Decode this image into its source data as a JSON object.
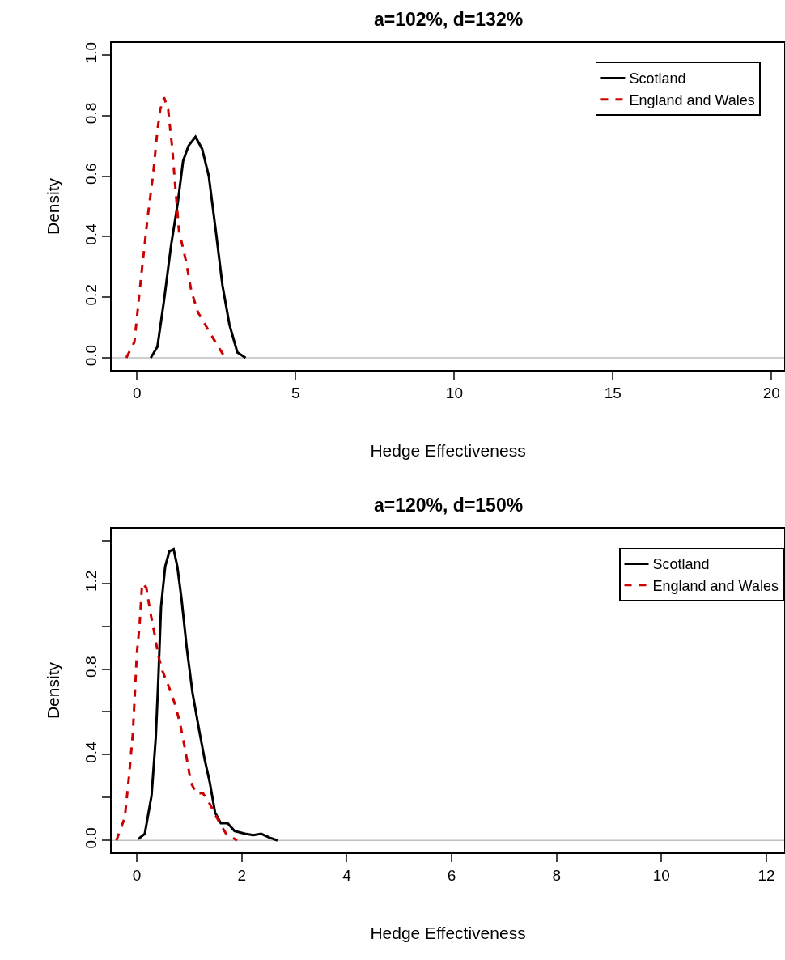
{
  "chart_data": [
    {
      "type": "line",
      "title": "a=102%, d=132%",
      "xlabel": "Hedge Effectiveness",
      "ylabel": "Density",
      "xlim": [
        -0.8,
        20.4
      ],
      "xticks": [
        0,
        5,
        10,
        15,
        20
      ],
      "ylim": [
        -0.04,
        1.04
      ],
      "yticks": [
        {
          "value": 0,
          "label": "0.0"
        },
        0.2,
        0.4,
        0.6,
        0.8,
        {
          "value": 1,
          "label": "1.0"
        }
      ],
      "legend": "top right",
      "grid": false,
      "marker": "none",
      "ref_lines": [
        {
          "axis": "y",
          "value": 0,
          "color": "#bebebe"
        }
      ],
      "series": [
        {
          "name": "Scotland",
          "color": "#000000",
          "line_style": "solid",
          "x": [
            0.43,
            0.64,
            0.85,
            1.07,
            1.28,
            1.45,
            1.62,
            1.84,
            2.05,
            2.26,
            2.48,
            2.69,
            2.91,
            3.16,
            3.42
          ],
          "values": [
            0,
            0.036,
            0.19,
            0.37,
            0.51,
            0.65,
            0.7,
            0.73,
            0.69,
            0.6,
            0.42,
            0.24,
            0.11,
            0.018,
            0
          ]
        },
        {
          "name": "England and Wales",
          "color": "#cc0000",
          "line_style": "dashed",
          "x": [
            -0.34,
            -0.085,
            0.13,
            0.34,
            0.51,
            0.64,
            0.73,
            0.85,
            0.98,
            1.11,
            1.2,
            1.32,
            1.54,
            1.71,
            1.92,
            2.31,
            2.56,
            2.78
          ],
          "values": [
            0,
            0.052,
            0.27,
            0.47,
            0.61,
            0.75,
            0.82,
            0.86,
            0.82,
            0.69,
            0.57,
            0.42,
            0.32,
            0.22,
            0.15,
            0.08,
            0.036,
            0
          ]
        }
      ]
    },
    {
      "type": "line",
      "title": "a=120%, d=150%",
      "xlabel": "Hedge Effectiveness",
      "ylabel": "Density",
      "xlim": [
        -0.48,
        12.34
      ],
      "xticks": [
        0,
        2,
        4,
        6,
        8,
        10,
        12
      ],
      "ylim": [
        -0.056,
        1.456
      ],
      "yticks": [
        {
          "value": 0,
          "label": "0.0"
        },
        {
          "value": 0.2,
          "label": null
        },
        0.4,
        {
          "value": 0.6,
          "label": null
        },
        0.8,
        {
          "value": 1,
          "label": null
        },
        1.2,
        {
          "value": 1.4,
          "label": null
        }
      ],
      "legend": "top right",
      "grid": false,
      "marker": "none",
      "ref_lines": [
        {
          "axis": "y",
          "value": 0,
          "color": "#bebebe"
        }
      ],
      "series": [
        {
          "name": "Scotland",
          "color": "#000000",
          "line_style": "solid",
          "x": [
            0.026,
            0.15,
            0.28,
            0.36,
            0.41,
            0.46,
            0.54,
            0.62,
            0.7,
            0.77,
            0.85,
            0.95,
            1.06,
            1.19,
            1.29,
            1.39,
            1.49,
            1.6,
            1.73,
            1.86,
            2.06,
            2.22,
            2.37,
            2.53,
            2.68
          ],
          "values": [
            0.006,
            0.03,
            0.21,
            0.48,
            0.76,
            1.09,
            1.28,
            1.35,
            1.36,
            1.28,
            1.13,
            0.9,
            0.69,
            0.51,
            0.38,
            0.27,
            0.13,
            0.08,
            0.08,
            0.044,
            0.031,
            0.025,
            0.031,
            0.013,
            0
          ]
        },
        {
          "name": "England and Wales",
          "color": "#cc0000",
          "line_style": "dashed",
          "x": [
            -0.39,
            -0.23,
            -0.15,
            -0.077,
            0,
            0.05,
            0.1,
            0.18,
            0.26,
            0.34,
            0.41,
            0.49,
            0.62,
            0.72,
            0.82,
            0.93,
            1.03,
            1.13,
            1.26,
            1.39,
            1.55,
            1.7,
            1.91
          ],
          "values": [
            0,
            0.107,
            0.3,
            0.5,
            0.875,
            1.0,
            1.2,
            1.18,
            1.06,
            0.96,
            0.86,
            0.79,
            0.71,
            0.64,
            0.55,
            0.41,
            0.27,
            0.22,
            0.22,
            0.17,
            0.094,
            0.031,
            0
          ]
        }
      ]
    }
  ]
}
